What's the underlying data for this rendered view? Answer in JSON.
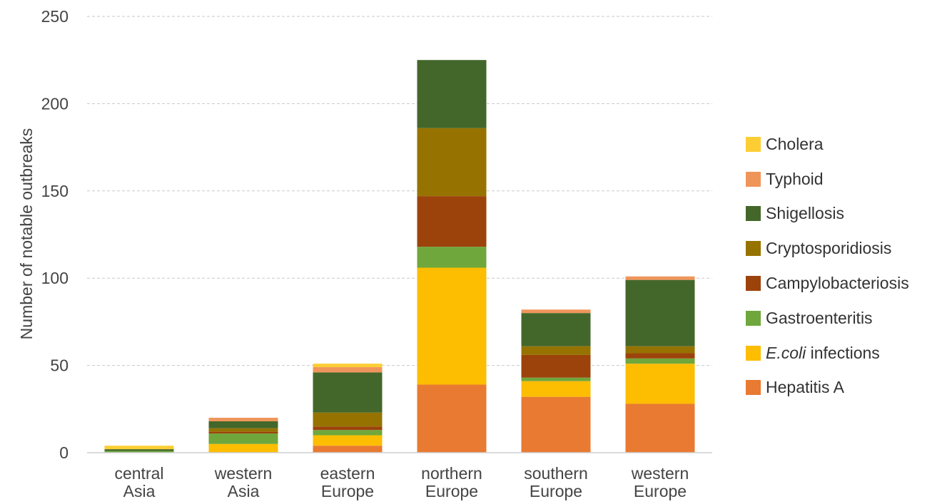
{
  "chart_data": {
    "type": "bar",
    "stacked": true,
    "ylabel": "Number of notable outbreaks",
    "xlabel": "",
    "ylim": [
      0,
      250
    ],
    "yticks": [
      0,
      50,
      100,
      150,
      200,
      250
    ],
    "grid": true,
    "legend_position": "right",
    "categories": [
      [
        "central",
        "Asia"
      ],
      [
        "western",
        "Asia"
      ],
      [
        "eastern",
        "Europe"
      ],
      [
        "northern",
        "Europe"
      ],
      [
        "southern",
        "Europe"
      ],
      [
        "western",
        "Europe"
      ]
    ],
    "series": [
      {
        "name": "Hepatitis A",
        "color": "#E97A31",
        "values": [
          0,
          0,
          4,
          39,
          32,
          28
        ]
      },
      {
        "name": "E.coli infections",
        "name_italic": "E.coli",
        "name_rest": " infections",
        "color": "#FDBD00",
        "values": [
          0,
          5,
          6,
          67,
          9,
          23
        ]
      },
      {
        "name": "Gastroenteritis",
        "color": "#6FA73D",
        "values": [
          1,
          6,
          3,
          12,
          2,
          3
        ]
      },
      {
        "name": "Campylobacteriosis",
        "color": "#9C430B",
        "values": [
          0,
          1,
          2,
          29,
          13,
          3
        ]
      },
      {
        "name": "Cryptosporidiosis",
        "color": "#967301",
        "values": [
          0,
          2,
          8,
          39,
          5,
          4
        ]
      },
      {
        "name": "Shigellosis",
        "color": "#43672A",
        "values": [
          1,
          4,
          23,
          39,
          19,
          38
        ]
      },
      {
        "name": "Typhoid",
        "color": "#F0955A",
        "values": [
          0,
          2,
          3,
          0,
          2,
          2
        ]
      },
      {
        "name": "Cholera",
        "color": "#FDCE34",
        "values": [
          2,
          0,
          2,
          0,
          0,
          0
        ]
      }
    ]
  }
}
